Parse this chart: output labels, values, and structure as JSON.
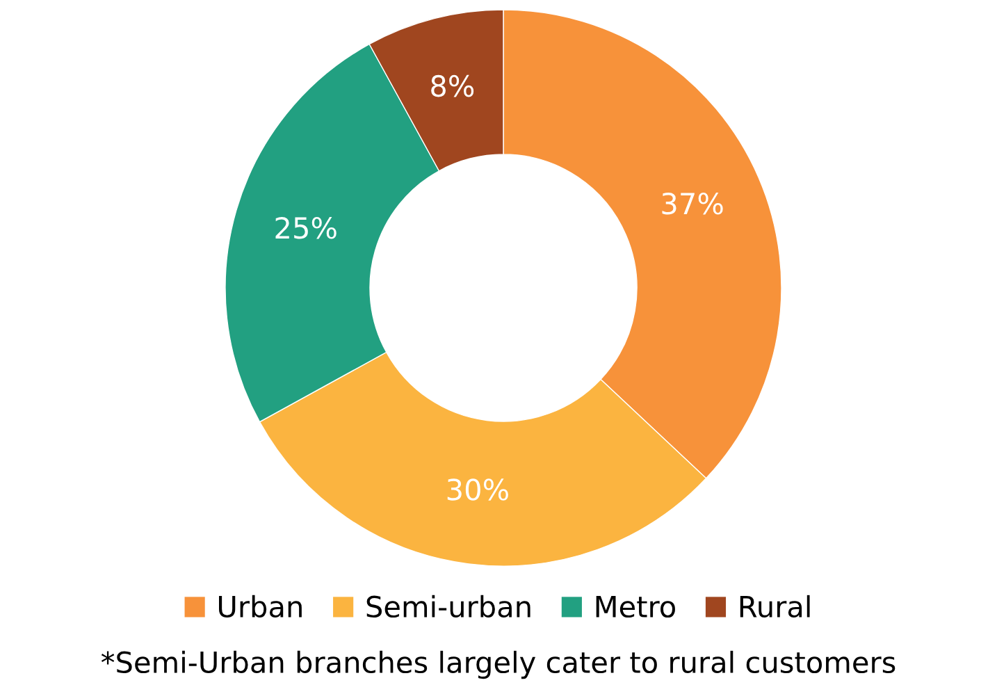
{
  "chart_data": {
    "type": "donut",
    "categories": [
      "Urban",
      "Semi-urban",
      "Metro",
      "Rural"
    ],
    "values": [
      37,
      30,
      25,
      8
    ],
    "colors": [
      "#f7923a",
      "#fbb440",
      "#22a081",
      "#a0461f"
    ],
    "value_labels": [
      "37%",
      "30%",
      "25%",
      "8%"
    ],
    "legend": "bottom",
    "annotations": [
      "*Semi-Urban branches largely cater to rural customers"
    ]
  }
}
